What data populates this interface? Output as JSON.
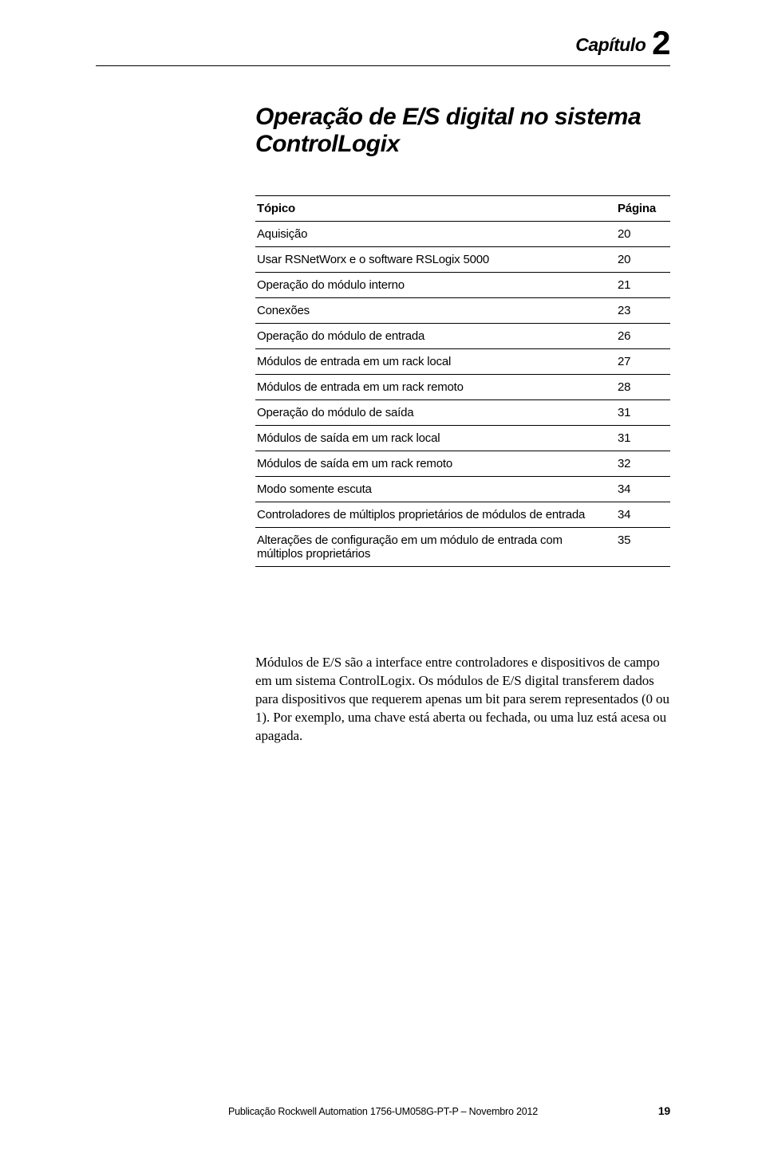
{
  "chapter": {
    "label_prefix": "Capítulo",
    "number": "2",
    "title": "Operação de E/S digital no sistema ControlLogix"
  },
  "toc": {
    "header_topic": "Tópico",
    "header_page": "Página",
    "rows": [
      {
        "topic": "Aquisição",
        "page": "20"
      },
      {
        "topic": "Usar RSNetWorx e o software RSLogix 5000",
        "page": "20"
      },
      {
        "topic": "Operação do módulo interno",
        "page": "21"
      },
      {
        "topic": "Conexões",
        "page": "23"
      },
      {
        "topic": "Operação do módulo de entrada",
        "page": "26"
      },
      {
        "topic": "Módulos de entrada em um rack local",
        "page": "27"
      },
      {
        "topic": "Módulos de entrada em um rack remoto",
        "page": "28"
      },
      {
        "topic": "Operação do módulo de saída",
        "page": "31"
      },
      {
        "topic": "Módulos de saída em um rack local",
        "page": "31"
      },
      {
        "topic": "Módulos de saída em um rack remoto",
        "page": "32"
      },
      {
        "topic": "Modo somente escuta",
        "page": "34"
      },
      {
        "topic": "Controladores de múltiplos proprietários de módulos de entrada",
        "page": "34"
      },
      {
        "topic": "Alterações de configuração em um módulo de entrada com múltiplos proprietários",
        "page": "35"
      }
    ]
  },
  "body_paragraph": "Módulos de E/S são a interface entre controladores e dispositivos de campo em um sistema ControlLogix. Os módulos de E/S digital transferem dados para dispositivos que requerem apenas um bit para serem representados (0 ou 1). Por exemplo, uma chave está aberta ou fechada, ou uma luz está acesa ou apagada.",
  "footer": {
    "publication": "Publicação Rockwell Automation 1756-UM058G-PT-P – Novembro 2012",
    "page_number": "19"
  }
}
